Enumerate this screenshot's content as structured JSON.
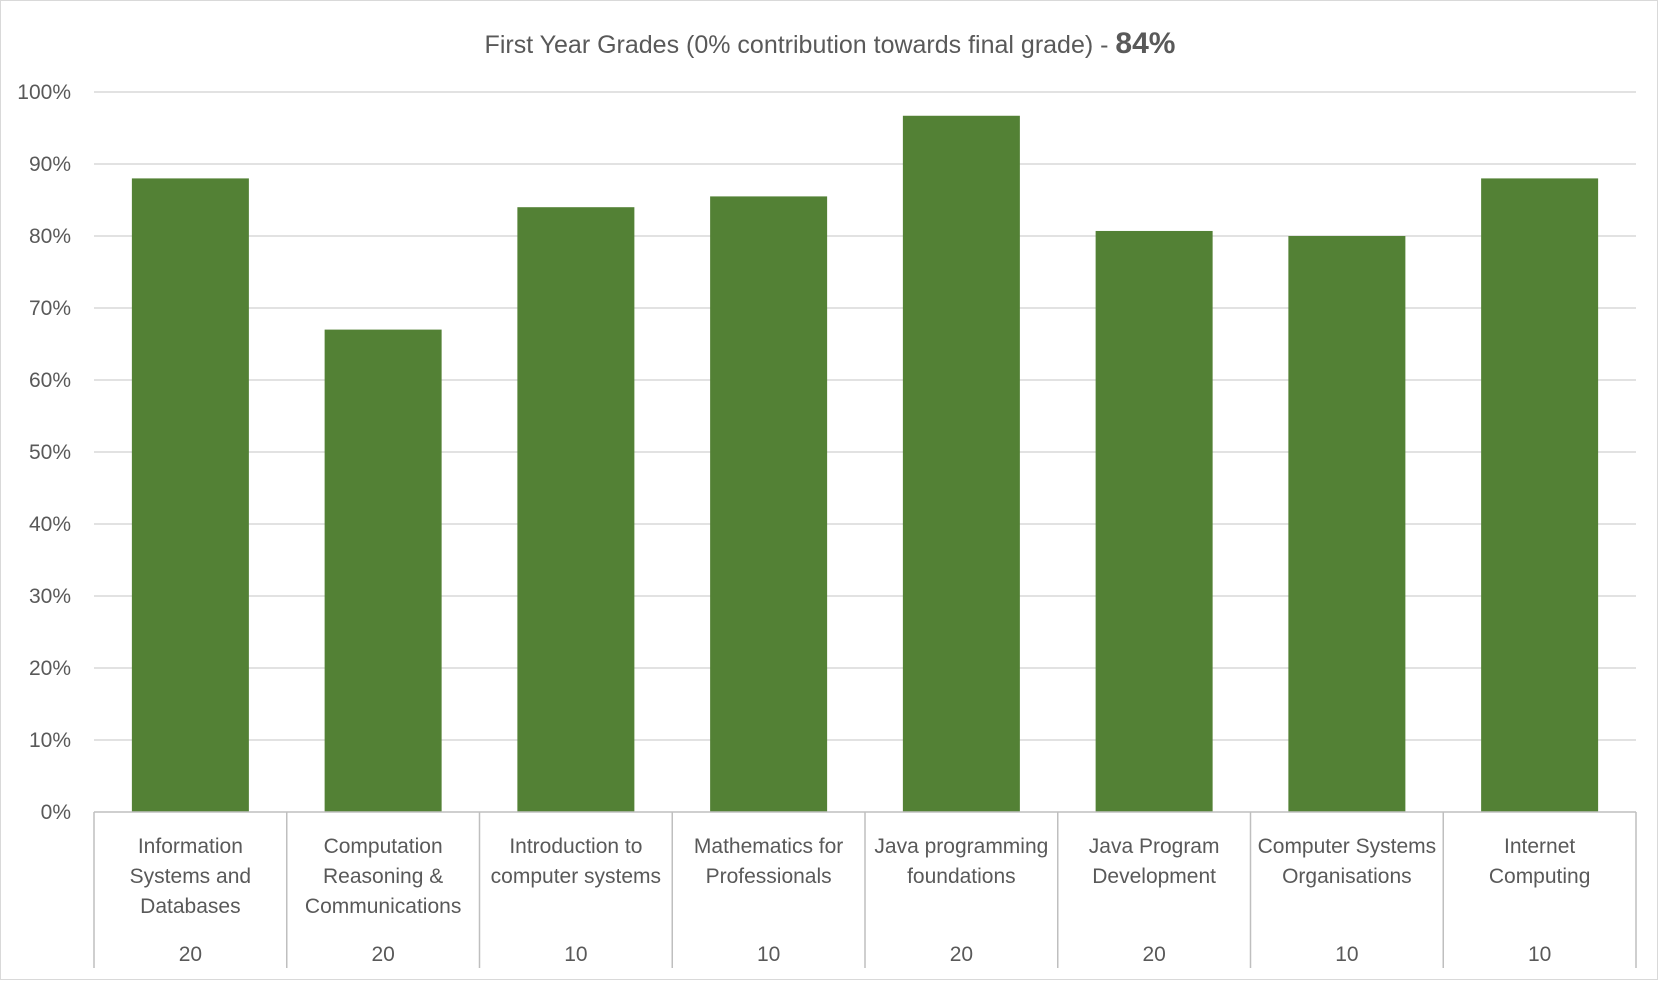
{
  "chart_data": {
    "type": "bar",
    "title": "First Year Grades (0% contribution towards final grade) - ",
    "title_value": "84%",
    "xlabel": "",
    "ylabel": "",
    "ylim": [
      0,
      100
    ],
    "y_ticks": [
      "0%",
      "10%",
      "20%",
      "30%",
      "40%",
      "50%",
      "60%",
      "70%",
      "80%",
      "90%",
      "100%"
    ],
    "grid": true,
    "legend": "none",
    "bar_color": "#538135",
    "categories": [
      [
        "Information",
        "Systems and",
        "Databases"
      ],
      [
        "Computation",
        "Reasoning &",
        "Communications"
      ],
      [
        "Introduction to",
        "computer systems"
      ],
      [
        "Mathematics for",
        "Professionals"
      ],
      [
        "Java programming",
        "foundations"
      ],
      [
        "Java Program",
        "Development"
      ],
      [
        "Computer Systems",
        "Organisations"
      ],
      [
        "Internet",
        "Computing"
      ]
    ],
    "credits": [
      "20",
      "20",
      "10",
      "10",
      "20",
      "20",
      "10",
      "10"
    ],
    "values": [
      88,
      67,
      84,
      85.5,
      96.7,
      80.7,
      80,
      88
    ]
  }
}
